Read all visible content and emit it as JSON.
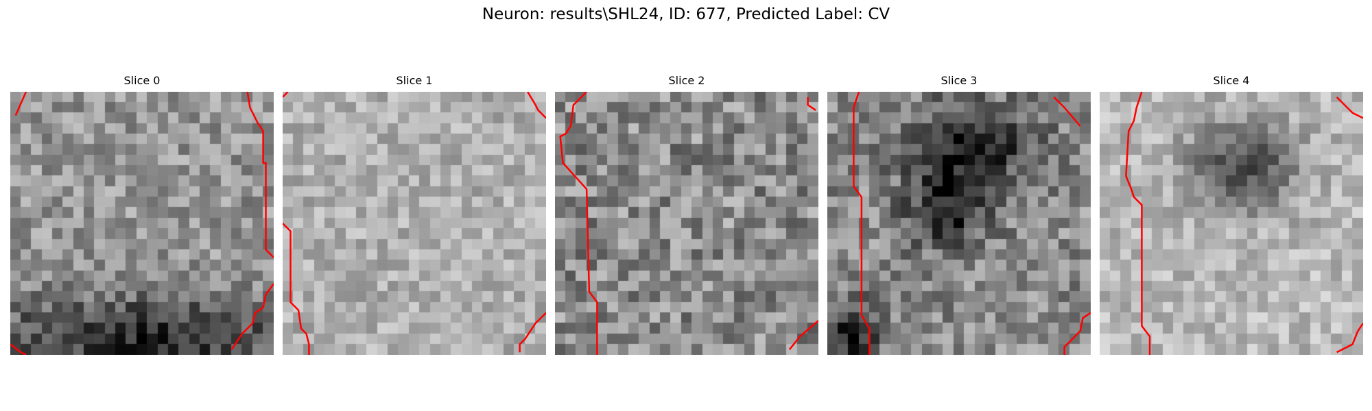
{
  "figure": {
    "title": "Neuron: results\\SHL24, ID: 677, Predicted Label: CV"
  },
  "grid_size": 25,
  "contour_color": "#ff0000",
  "slices": [
    {
      "title": "Slice 0",
      "contours": [
        [
          [
            0.06,
            0.0
          ],
          [
            0.02,
            0.09
          ]
        ],
        [
          [
            0.9,
            0.0
          ],
          [
            0.91,
            0.06
          ],
          [
            0.94,
            0.12
          ],
          [
            0.96,
            0.15
          ],
          [
            0.96,
            0.27
          ],
          [
            0.97,
            0.27
          ],
          [
            0.97,
            0.6
          ],
          [
            1.0,
            0.63
          ]
        ],
        [
          [
            1.0,
            0.73
          ],
          [
            0.97,
            0.77
          ],
          [
            0.96,
            0.82
          ],
          [
            0.93,
            0.84
          ],
          [
            0.92,
            0.88
          ],
          [
            0.88,
            0.92
          ],
          [
            0.84,
            0.98
          ]
        ],
        [
          [
            0.0,
            0.96
          ],
          [
            0.04,
            0.99
          ],
          [
            0.06,
            1.0
          ]
        ]
      ]
    },
    {
      "title": "Slice 1",
      "contours": [
        [
          [
            0.02,
            0.0
          ],
          [
            0.0,
            0.02
          ]
        ],
        [
          [
            0.93,
            0.0
          ],
          [
            0.96,
            0.05
          ],
          [
            0.97,
            0.07
          ],
          [
            1.0,
            0.1
          ]
        ],
        [
          [
            0.0,
            0.5
          ],
          [
            0.03,
            0.53
          ],
          [
            0.03,
            0.8
          ],
          [
            0.06,
            0.83
          ],
          [
            0.07,
            0.9
          ],
          [
            0.09,
            0.92
          ],
          [
            0.1,
            0.96
          ],
          [
            0.1,
            1.0
          ]
        ],
        [
          [
            1.0,
            0.84
          ],
          [
            0.96,
            0.88
          ],
          [
            0.92,
            0.94
          ],
          [
            0.9,
            0.96
          ],
          [
            0.9,
            0.99
          ]
        ]
      ]
    },
    {
      "title": "Slice 2",
      "contours": [
        [
          [
            0.12,
            0.0
          ],
          [
            0.07,
            0.05
          ],
          [
            0.06,
            0.13
          ],
          [
            0.04,
            0.16
          ],
          [
            0.02,
            0.17
          ],
          [
            0.03,
            0.27
          ],
          [
            0.12,
            0.37
          ],
          [
            0.13,
            0.76
          ],
          [
            0.16,
            0.8
          ],
          [
            0.16,
            1.0
          ]
        ],
        [
          [
            0.96,
            0.02
          ],
          [
            0.96,
            0.05
          ],
          [
            0.99,
            0.07
          ]
        ],
        [
          [
            0.89,
            0.98
          ],
          [
            0.93,
            0.93
          ],
          [
            1.0,
            0.87
          ]
        ]
      ]
    },
    {
      "title": "Slice 3",
      "contours": [
        [
          [
            0.12,
            0.0
          ],
          [
            0.1,
            0.06
          ],
          [
            0.1,
            0.36
          ],
          [
            0.13,
            0.4
          ],
          [
            0.13,
            0.85
          ],
          [
            0.16,
            0.9
          ],
          [
            0.16,
            1.0
          ]
        ],
        [
          [
            0.86,
            0.02
          ],
          [
            0.9,
            0.06
          ],
          [
            0.96,
            0.13
          ]
        ],
        [
          [
            1.0,
            0.84
          ],
          [
            0.97,
            0.86
          ],
          [
            0.96,
            0.91
          ],
          [
            0.94,
            0.93
          ],
          [
            0.9,
            0.97
          ],
          [
            0.9,
            1.0
          ]
        ]
      ]
    },
    {
      "title": "Slice 4",
      "contours": [
        [
          [
            0.16,
            0.0
          ],
          [
            0.14,
            0.06
          ],
          [
            0.13,
            0.11
          ],
          [
            0.11,
            0.15
          ],
          [
            0.1,
            0.32
          ],
          [
            0.12,
            0.37
          ],
          [
            0.13,
            0.4
          ],
          [
            0.16,
            0.43
          ],
          [
            0.16,
            0.89
          ],
          [
            0.19,
            0.93
          ],
          [
            0.19,
            1.0
          ]
        ],
        [
          [
            0.9,
            0.02
          ],
          [
            0.96,
            0.08
          ],
          [
            1.0,
            0.1
          ]
        ],
        [
          [
            1.0,
            0.88
          ],
          [
            0.98,
            0.91
          ],
          [
            0.96,
            0.96
          ],
          [
            0.9,
            0.99
          ]
        ]
      ]
    }
  ]
}
